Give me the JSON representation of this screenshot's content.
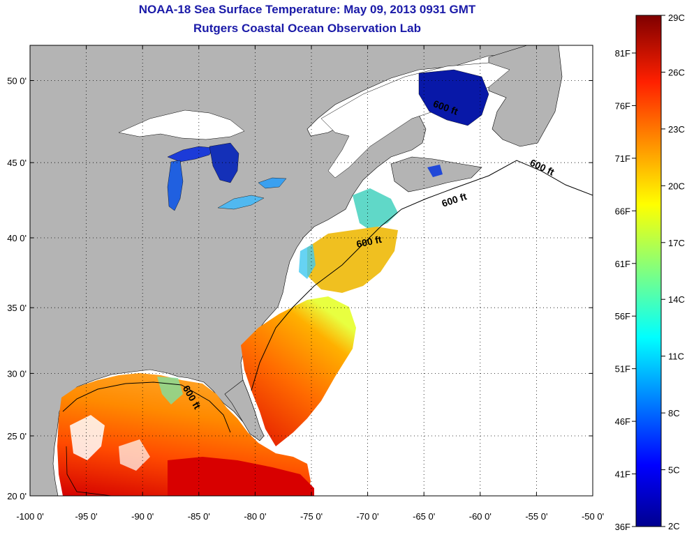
{
  "title": "NOAA-18 Sea Surface Temperature:  May 09, 2013 0931 GMT",
  "subtitle": "Rutgers Coastal Ocean Observation Lab",
  "map": {
    "lon_range": [
      -100,
      -50
    ],
    "lat_range": [
      20,
      52
    ],
    "lon_ticks": [
      "-100 0'",
      "-95 0'",
      "-90 0'",
      "-85 0'",
      "-80 0'",
      "-75 0'",
      "-70 0'",
      "-65 0'",
      "-60 0'",
      "-55 0'",
      "-50 0'"
    ],
    "lat_ticks": [
      "20 0'",
      "25 0'",
      "30 0'",
      "35 0'",
      "40 0'",
      "45 0'",
      "50 0'"
    ],
    "gridlines": true,
    "contour_label": "600 ft",
    "colors": {
      "land": "#b4b4b4",
      "ocean_nodata": "#ffffff",
      "title": "#1a1aa8"
    }
  },
  "colorbar": {
    "celsius_labels": [
      "29C",
      "26C",
      "23C",
      "20C",
      "17C",
      "14C",
      "11C",
      "8C",
      "5C",
      "2C"
    ],
    "fahrenheit_labels": [
      "81F",
      "76F",
      "71F",
      "66F",
      "61F",
      "56F",
      "51F",
      "46F",
      "41F",
      "36F"
    ],
    "colors": [
      "#7f0000",
      "#ff0000",
      "#ff8000",
      "#ffff00",
      "#80ff80",
      "#00ffff",
      "#0080ff",
      "#0000ff",
      "#00008f"
    ]
  }
}
